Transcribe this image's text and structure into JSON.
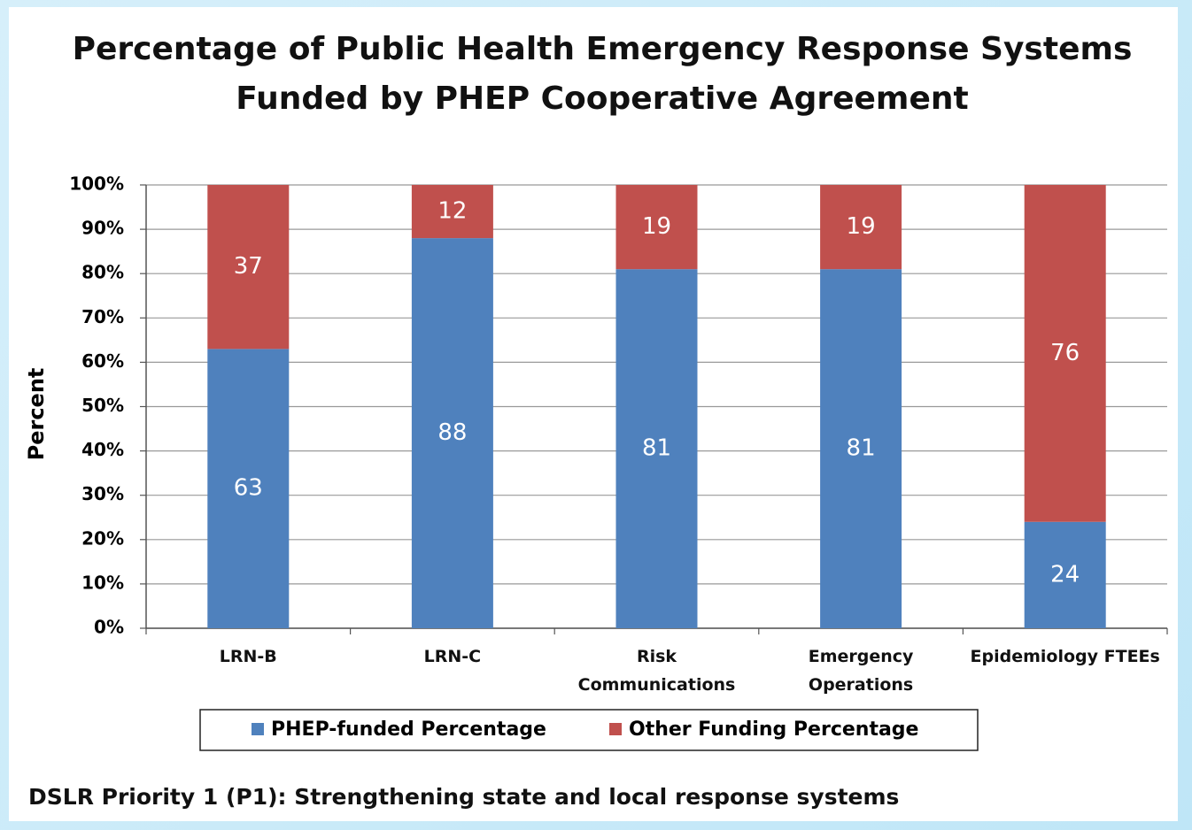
{
  "chart_data": {
    "type": "stacked-bar",
    "title": "Percentage of Public Health Emergency Response Systems\nFunded by PHEP Cooperative Agreement",
    "ylabel": "Percent",
    "categories": [
      "LRN-B",
      "LRN-C",
      "Risk\nCommunications",
      "Emergency\nOperations",
      "Epidemiology FTEEs"
    ],
    "series": [
      {
        "name": "PHEP-funded Percentage",
        "color": "#4f81bd",
        "values": [
          63,
          88,
          81,
          81,
          24
        ]
      },
      {
        "name": "Other Funding Percentage",
        "color": "#c0504d",
        "values": [
          37,
          12,
          19,
          19,
          76
        ]
      }
    ],
    "ylim": [
      0,
      100
    ],
    "yticks": [
      {
        "value": 0,
        "label": "0%"
      },
      {
        "value": 10,
        "label": "10%"
      },
      {
        "value": 20,
        "label": "20%"
      },
      {
        "value": 30,
        "label": "30%"
      },
      {
        "value": 40,
        "label": "40%"
      },
      {
        "value": 50,
        "label": "50%"
      },
      {
        "value": 60,
        "label": "60%"
      },
      {
        "value": 70,
        "label": "70%"
      },
      {
        "value": 80,
        "label": "80%"
      },
      {
        "value": 90,
        "label": "90%"
      },
      {
        "value": 100,
        "label": "100%"
      }
    ],
    "grid": true,
    "legend": "bottom",
    "footnote": "DSLR Priority 1 (P1): Strengthening state and local response systems"
  }
}
